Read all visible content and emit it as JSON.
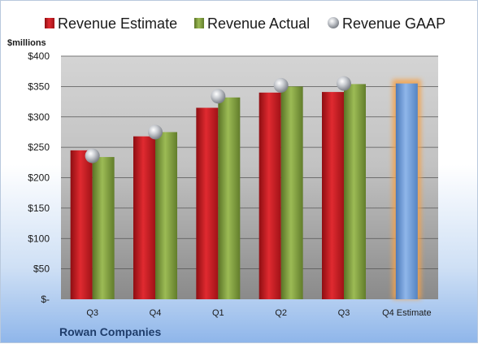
{
  "chart_data": {
    "type": "bar",
    "company": "Rowan Companies",
    "unit_label": "$millions",
    "categories": [
      "Q3",
      "Q4",
      "Q1",
      "Q2",
      "Q3",
      "Q4 Estimate"
    ],
    "series": [
      {
        "name": "Revenue Estimate",
        "kind": "bar",
        "color": "#c8161d",
        "values": [
          245,
          268,
          315,
          340,
          341,
          null
        ]
      },
      {
        "name": "Revenue Actual",
        "kind": "bar",
        "color": "#7f9c3a",
        "values": [
          234,
          275,
          332,
          350,
          354,
          null
        ]
      },
      {
        "name": "Revenue GAAP",
        "kind": "marker",
        "color": "#b9bcc2",
        "values": [
          236,
          275,
          334,
          352,
          355,
          null
        ]
      },
      {
        "name": "",
        "kind": "bar",
        "color": "#6b9ad8",
        "highlight": "#f5a24a",
        "values": [
          null,
          null,
          null,
          null,
          null,
          355
        ]
      }
    ],
    "y_ticks": [
      "$-",
      "$50",
      "$100",
      "$150",
      "$200",
      "$250",
      "$300",
      "$350",
      "$400"
    ],
    "ylim": [
      0,
      400
    ],
    "grid": true,
    "legend": "top"
  }
}
